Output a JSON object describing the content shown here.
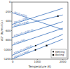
{
  "chart_data": {
    "type": "line",
    "x_label": "Temperature (K)",
    "y_label": "ΔG° (kJ/mol O₂)",
    "xlim": [
      0,
      2200
    ],
    "xticks": [
      0,
      1000,
      2000
    ],
    "ylim": [
      -1200,
      0
    ],
    "yticks": [
      0,
      -200,
      -400,
      -600,
      -800,
      -1000,
      -1200
    ],
    "grid": false,
    "legend": "lower right",
    "series": [
      {
        "name": "2Ni+O₂=2NiO",
        "color": "#1f5fb4",
        "x": [
          0,
          2000
        ],
        "values": [
          -470,
          -130
        ]
      },
      {
        "name": "2Fe+O₂=2FeO",
        "color": "#1f5fb4",
        "x": [
          0,
          2000
        ],
        "values": [
          -530,
          -270
        ]
      },
      {
        "name": "2C+O₂=2CO",
        "color": "#1f5fb4",
        "x": [
          0,
          2000
        ],
        "values": [
          -220,
          -580
        ]
      },
      {
        "name": "4/3Cr+O₂=2/3Cr₂O₃",
        "color": "#1f5fb4",
        "x": [
          0,
          2000
        ],
        "values": [
          -750,
          -410
        ]
      },
      {
        "name": "Si+O₂=SiO₂",
        "color": "#1f5fb4",
        "x": [
          0,
          2000
        ],
        "values": [
          -910,
          -550
        ]
      },
      {
        "name": "4/3Al+O₂=2/3Al₂O₃",
        "color": "#1f5fb4",
        "x": [
          0,
          2000
        ],
        "values": [
          -1120,
          -680
        ]
      },
      {
        "name": "2Mg+O₂=2MgO",
        "color": "#1f5fb4",
        "x": [
          0,
          2000
        ],
        "values": [
          -1200,
          -780
        ]
      },
      {
        "name": "Melting",
        "type": "scatter",
        "marker": "circle",
        "color": "#000000",
        "x": [
          923,
          933,
          1809
        ],
        "values": [
          -1006,
          -915,
          -295
        ]
      },
      {
        "name": "Boiling",
        "type": "scatter",
        "marker": "square",
        "color": "#000000",
        "x": [
          1363
        ],
        "values": [
          -914
        ]
      }
    ]
  }
}
